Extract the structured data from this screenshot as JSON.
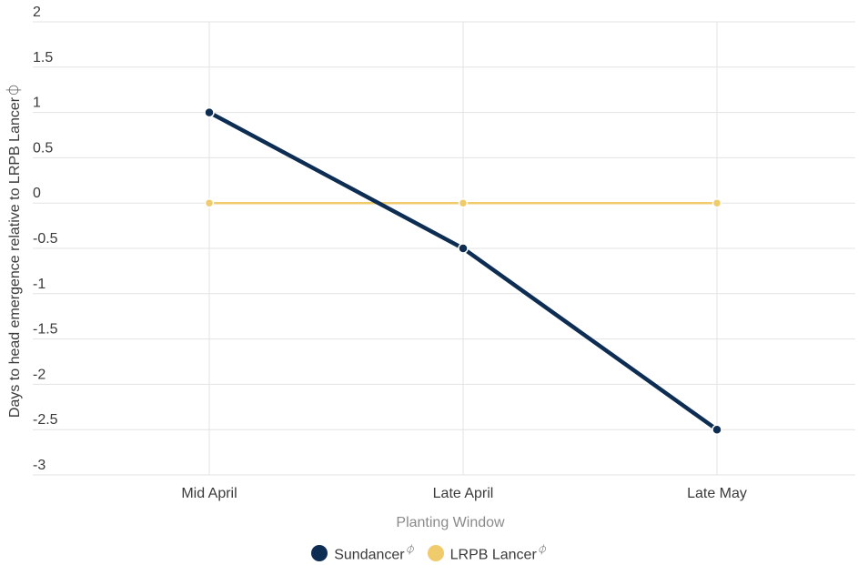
{
  "chart_data": {
    "type": "line",
    "categories": [
      "Mid April",
      "Late April",
      "Late May"
    ],
    "series": [
      {
        "name": "Sundancer",
        "name_suffix": "⏀",
        "color": "#0d2d52",
        "values": [
          1,
          -0.5,
          -2.5
        ]
      },
      {
        "name": "LRPB Lancer",
        "name_suffix": "⏀",
        "color": "#f0cb6b",
        "values": [
          0,
          0,
          0
        ]
      }
    ],
    "title": "",
    "xlabel": "Planting Window",
    "ylabel": "Days to head emergence relative to LRPB Lancer⏀",
    "ylim": [
      -3,
      2
    ],
    "yticks": [
      "2",
      "1.5",
      "1",
      "0.5",
      "0",
      "-0.5",
      "-1",
      "-1.5",
      "-2",
      "-2.5",
      "-3"
    ],
    "grid": true,
    "legend_position": "bottom-center"
  }
}
